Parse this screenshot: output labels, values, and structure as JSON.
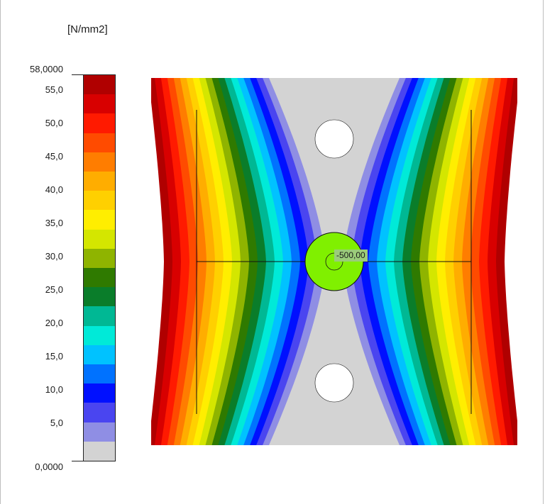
{
  "legend": {
    "unit": "[N/mm2]",
    "max_label": "58,0000",
    "min_label": "0,0000",
    "ticks": [
      "55,0",
      "50,0",
      "45,0",
      "40,0",
      "35,0",
      "30,0",
      "25,0",
      "20,0",
      "15,0",
      "10,0",
      "5,0"
    ],
    "bands": [
      "#b00000",
      "#d80000",
      "#ff1a00",
      "#ff4b00",
      "#ff7d00",
      "#ffad00",
      "#ffd000",
      "#ffee00",
      "#d4e600",
      "#8fb400",
      "#2f7a00",
      "#0a7d2a",
      "#00b894",
      "#00ead8",
      "#00c2ff",
      "#0072ff",
      "#0010ff",
      "#4a45f0",
      "#8f8ee4",
      "#d3d3d3"
    ]
  },
  "plot": {
    "annotation": "-500,00",
    "hole_fill": "#ffffff",
    "center_fill": "#80f000"
  }
}
